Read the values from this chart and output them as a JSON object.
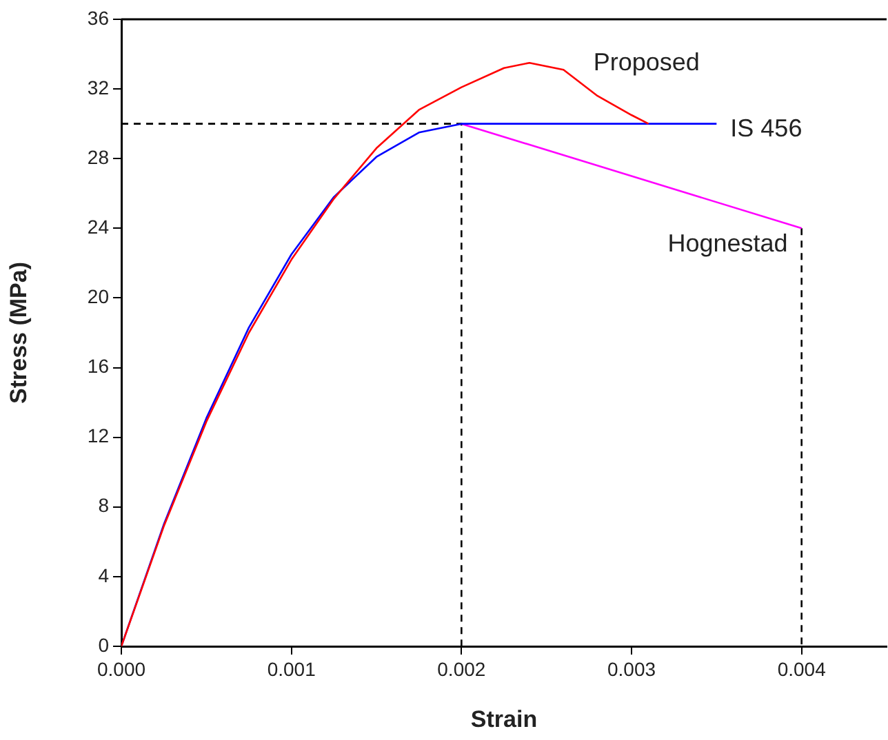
{
  "chart_data": {
    "type": "line",
    "xlabel": "Strain",
    "ylabel": "Stress (MPa)",
    "xlim": [
      0,
      0.0045
    ],
    "ylim": [
      0,
      36
    ],
    "xticks": [
      {
        "value": 0,
        "label": "0.000"
      },
      {
        "value": 0.001,
        "label": "0.001"
      },
      {
        "value": 0.002,
        "label": "0.002"
      },
      {
        "value": 0.003,
        "label": "0.003"
      },
      {
        "value": 0.004,
        "label": "0.004"
      }
    ],
    "yticks": [
      0,
      4,
      8,
      12,
      16,
      20,
      24,
      28,
      32,
      36
    ],
    "grid": false,
    "legend": false,
    "marker": "none",
    "series": [
      {
        "name": "Proposed",
        "color": "#ff0000",
        "x": [
          0,
          0.00025,
          0.0005,
          0.00075,
          0.001,
          0.00125,
          0.0015,
          0.00175,
          0.002,
          0.00225,
          0.0024,
          0.0026,
          0.0028,
          0.003,
          0.0031
        ],
        "values": [
          0,
          6.9,
          12.9,
          18.0,
          22.2,
          25.7,
          28.6,
          30.8,
          32.1,
          33.2,
          33.5,
          33.1,
          31.6,
          30.5,
          30
        ]
      },
      {
        "name": "IS 456",
        "color": "#0000ff",
        "x": [
          0,
          0.00025,
          0.0005,
          0.00075,
          0.001,
          0.00125,
          0.0015,
          0.00175,
          0.002,
          0.0035
        ],
        "values": [
          0,
          7.0,
          13.1,
          18.3,
          22.5,
          25.8,
          28.1,
          29.5,
          30,
          30
        ]
      },
      {
        "name": "Hognestad",
        "color": "#ff00ff",
        "x": [
          0.002,
          0.004
        ],
        "values": [
          30,
          24
        ]
      },
      {
        "color": "#000000",
        "line_style": "dashed",
        "x": [
          0,
          0.002,
          0.002
        ],
        "values": [
          30,
          30,
          0
        ]
      },
      {
        "color": "#000000",
        "line_style": "dashed",
        "x": [
          0.004,
          0.004
        ],
        "values": [
          24,
          0
        ]
      }
    ]
  }
}
